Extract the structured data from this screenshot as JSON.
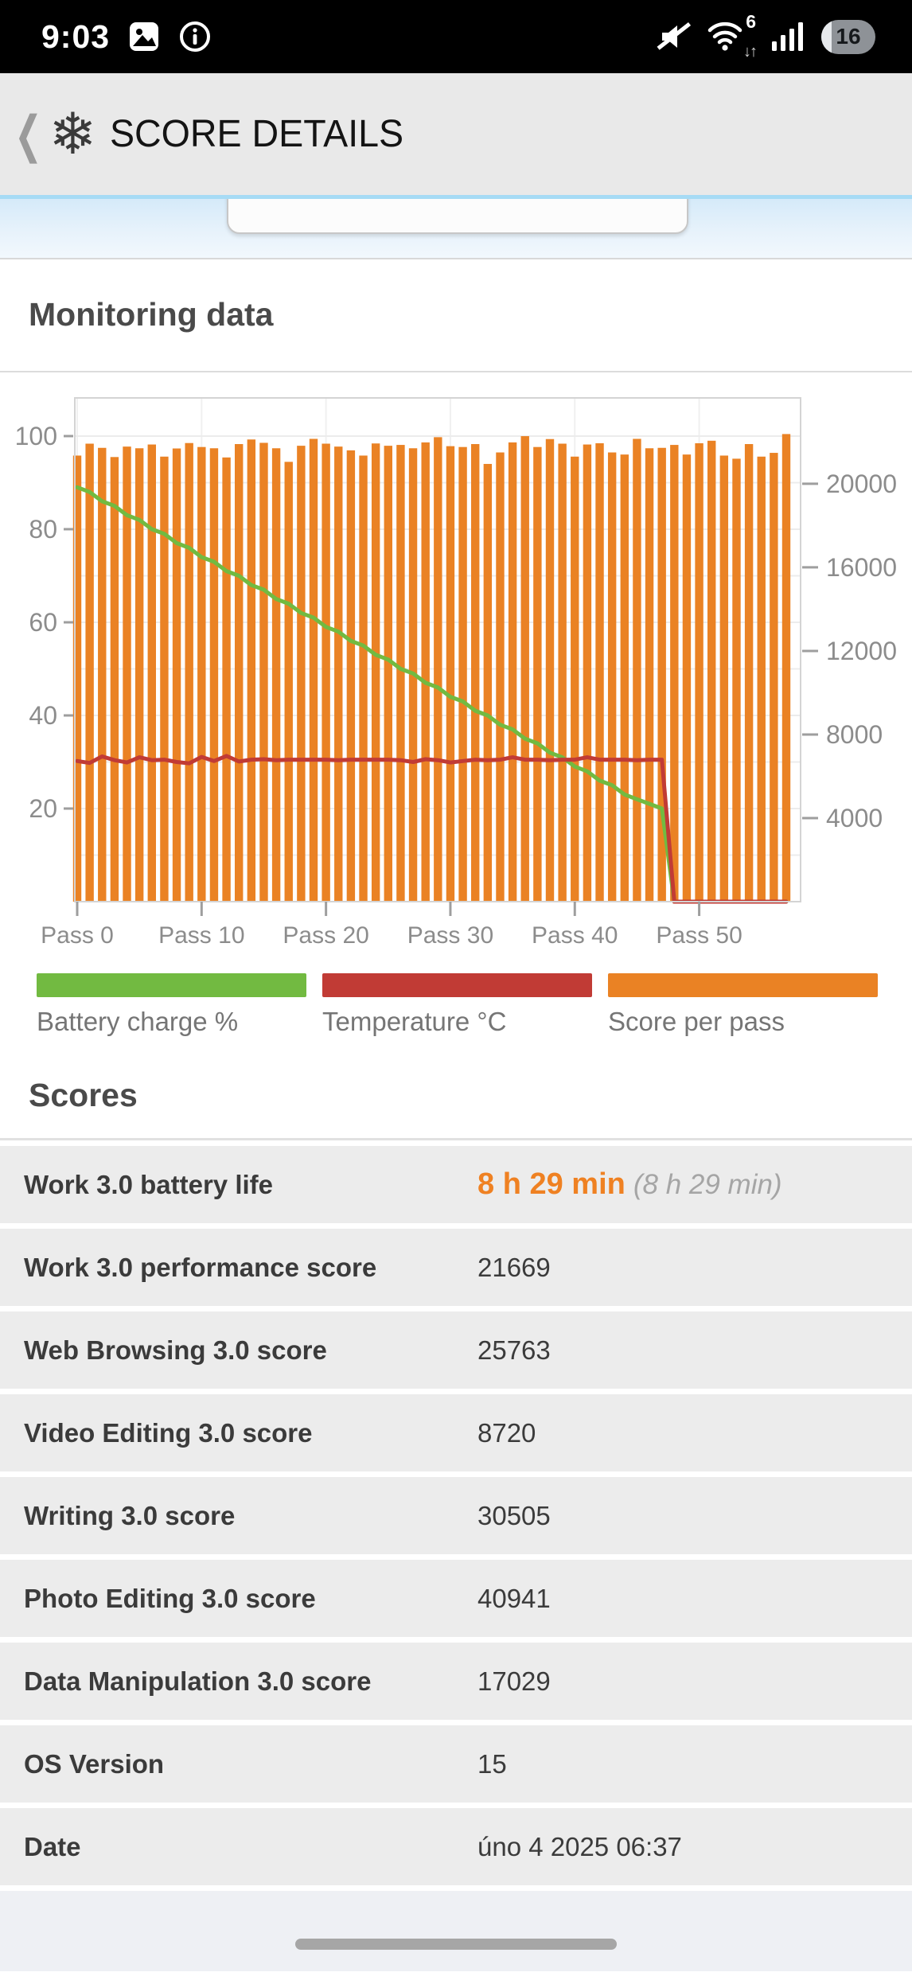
{
  "status_bar": {
    "time": "9:03",
    "wifi_label": "6",
    "battery_percent": "16"
  },
  "header": {
    "back_glyph": "❮",
    "logo_glyph": "❄",
    "title": "SCORE DETAILS"
  },
  "monitoring": {
    "title": "Monitoring data"
  },
  "chart_data": {
    "type": "bar",
    "title": "Monitoring data",
    "x_ticks": [
      {
        "pass": 0,
        "label": "Pass 0"
      },
      {
        "pass": 10,
        "label": "Pass 10"
      },
      {
        "pass": 20,
        "label": "Pass 20"
      },
      {
        "pass": 30,
        "label": "Pass 30"
      },
      {
        "pass": 40,
        "label": "Pass 40"
      },
      {
        "pass": 50,
        "label": "Pass 50"
      }
    ],
    "left_axis": {
      "ticks": [
        20,
        40,
        60,
        80,
        100
      ],
      "max": 108.2,
      "grid_step": 10
    },
    "right_axis": {
      "ticks": [
        4000,
        8000,
        12000,
        16000,
        20000
      ],
      "max": 24110
    },
    "grid": true,
    "legend_position": "bottom",
    "series": [
      {
        "name": "Battery charge %",
        "type": "line",
        "axis": "left",
        "color": "#72ba41",
        "values": [
          89,
          88,
          86,
          85,
          83,
          82,
          80,
          79,
          77,
          76,
          74,
          73,
          71,
          70,
          68,
          67,
          65,
          64,
          62,
          61,
          59,
          58,
          56,
          55,
          53,
          52,
          50,
          49,
          47,
          46,
          44,
          43,
          41,
          40,
          38,
          37,
          35,
          34,
          32,
          31,
          29,
          28,
          26,
          25,
          23,
          22,
          21,
          20,
          0,
          0,
          0,
          0,
          0,
          0,
          0,
          0,
          0,
          0
        ]
      },
      {
        "name": "Temperature °C",
        "type": "line",
        "axis": "left",
        "color": "#c13b35",
        "values": [
          30.2,
          29.8,
          31.2,
          30.4,
          29.9,
          31.0,
          30.4,
          30.5,
          30.0,
          29.7,
          31.1,
          30.2,
          31.3,
          30.1,
          30.5,
          30.6,
          30.4,
          30.5,
          30.5,
          30.5,
          30.5,
          30.4,
          30.5,
          30.5,
          30.5,
          30.5,
          30.4,
          30.0,
          30.6,
          30.4,
          29.9,
          30.2,
          30.5,
          30.4,
          30.5,
          31.0,
          30.5,
          30.5,
          30.4,
          30.5,
          30.5,
          31.0,
          30.5,
          30.5,
          30.5,
          30.4,
          30.5,
          30.5,
          0,
          0,
          0,
          0,
          0,
          0,
          0,
          0,
          0,
          0
        ]
      },
      {
        "name": "Score per pass",
        "type": "bar",
        "axis": "right",
        "color": "#ea8224",
        "values": [
          21350,
          21920,
          21720,
          21280,
          21780,
          21700,
          21880,
          21300,
          21690,
          21950,
          21760,
          21700,
          21260,
          21900,
          22120,
          21960,
          21700,
          21050,
          21820,
          22150,
          21920,
          21780,
          21600,
          21350,
          21930,
          21820,
          21860,
          21700,
          21980,
          22230,
          21800,
          21760,
          21900,
          20950,
          21500,
          21980,
          22280,
          21760,
          22140,
          21920,
          21300,
          21880,
          21940,
          21500,
          21400,
          22150,
          21700,
          21720,
          21860,
          21400,
          21940,
          22060,
          21350,
          21200,
          21900,
          21300,
          21480,
          22380
        ]
      }
    ],
    "legend": [
      {
        "label": "Battery charge %",
        "color": "#72ba41"
      },
      {
        "label": "Temperature °C",
        "color": "#c13b35"
      },
      {
        "label": "Score per pass",
        "color": "#ea8224"
      }
    ]
  },
  "scores": {
    "title": "Scores",
    "rows": [
      {
        "label": "Work 3.0 battery life",
        "value": "8 h 29 min",
        "secondary": "(8 h 29 min)",
        "accent": true
      },
      {
        "label": "Work 3.0 performance score",
        "value": "21669"
      },
      {
        "label": "Web Browsing 3.0 score",
        "value": "25763"
      },
      {
        "label": "Video Editing 3.0 score",
        "value": "8720"
      },
      {
        "label": "Writing 3.0 score",
        "value": "30505"
      },
      {
        "label": "Photo Editing 3.0 score",
        "value": "40941"
      },
      {
        "label": "Data Manipulation 3.0 score",
        "value": "17029"
      },
      {
        "label": "OS Version",
        "value": "15"
      },
      {
        "label": "Date",
        "value": "úno 4 2025 06:37"
      }
    ]
  }
}
